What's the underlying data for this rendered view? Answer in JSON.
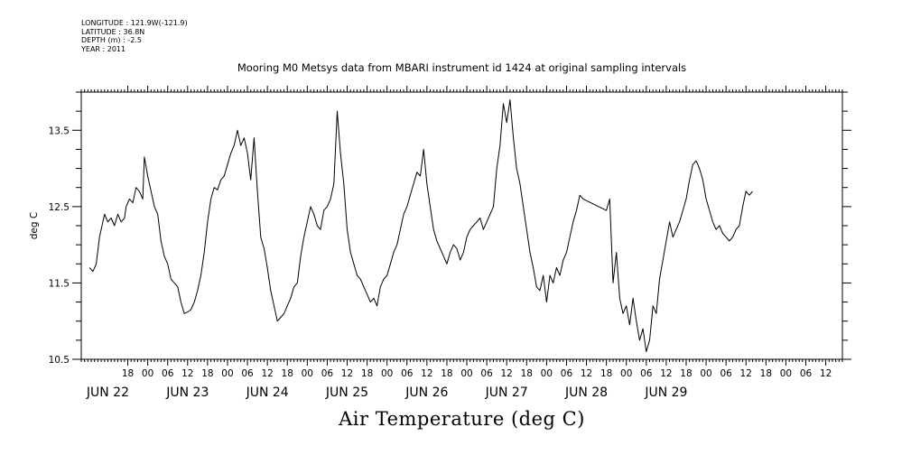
{
  "meta": {
    "longitude": "LONGITUDE : 121.9W(-121.9)",
    "latitude": "LATITUDE : 36.8N",
    "depth": "DEPTH (m) : -2.5",
    "year": "YEAR : 2011"
  },
  "chart_data": {
    "type": "line",
    "title": "Mooring M0 Metsys data from MBARI instrument id 1424 at original sampling intervals",
    "xlabel": "Air Temperature (deg C)",
    "ylabel": "deg C",
    "grid": false,
    "x_unit": "hours since JUN 22 00",
    "xlim": [
      -20,
      209
    ],
    "ylim": [
      10.5,
      14.0
    ],
    "y_ticks": [
      10.5,
      11.5,
      12.5,
      13.5
    ],
    "y_tick_labels": [
      "10.5",
      "11.5",
      "12.5",
      "13.5"
    ],
    "hour_ticks": [
      {
        "x": -6,
        "label": "18"
      },
      {
        "x": 0,
        "label": "00"
      },
      {
        "x": 6,
        "label": "06"
      },
      {
        "x": 12,
        "label": "12"
      },
      {
        "x": 18,
        "label": "18"
      },
      {
        "x": 24,
        "label": "00"
      },
      {
        "x": 30,
        "label": "06"
      },
      {
        "x": 36,
        "label": "12"
      },
      {
        "x": 42,
        "label": "18"
      },
      {
        "x": 48,
        "label": "00"
      },
      {
        "x": 54,
        "label": "06"
      },
      {
        "x": 60,
        "label": "12"
      },
      {
        "x": 66,
        "label": "18"
      },
      {
        "x": 72,
        "label": "00"
      },
      {
        "x": 78,
        "label": "06"
      },
      {
        "x": 84,
        "label": "12"
      },
      {
        "x": 90,
        "label": "18"
      },
      {
        "x": 96,
        "label": "00"
      },
      {
        "x": 102,
        "label": "06"
      },
      {
        "x": 108,
        "label": "12"
      },
      {
        "x": 114,
        "label": "18"
      },
      {
        "x": 120,
        "label": "00"
      },
      {
        "x": 126,
        "label": "06"
      },
      {
        "x": 132,
        "label": "12"
      },
      {
        "x": 138,
        "label": "18"
      },
      {
        "x": 144,
        "label": "00"
      },
      {
        "x": 150,
        "label": "06"
      },
      {
        "x": 156,
        "label": "12"
      },
      {
        "x": 162,
        "label": "18"
      },
      {
        "x": 168,
        "label": "00"
      },
      {
        "x": 174,
        "label": "06"
      },
      {
        "x": 180,
        "label": "12"
      },
      {
        "x": 186,
        "label": "18"
      },
      {
        "x": 192,
        "label": "00"
      },
      {
        "x": 198,
        "label": "06"
      },
      {
        "x": 204,
        "label": "12"
      }
    ],
    "date_labels": [
      {
        "x": -12,
        "label": "JUN 22"
      },
      {
        "x": 12,
        "label": "JUN 23"
      },
      {
        "x": 36,
        "label": "JUN 24"
      },
      {
        "x": 60,
        "label": "JUN 25"
      },
      {
        "x": 84,
        "label": "JUN 26"
      },
      {
        "x": 108,
        "label": "JUN 27"
      },
      {
        "x": 132,
        "label": "JUN 28"
      },
      {
        "x": 156,
        "label": "JUN 29"
      }
    ],
    "series": [
      {
        "values": [
          [
            -17.5,
            11.7
          ],
          [
            -16.5,
            11.65
          ],
          [
            -15.5,
            11.75
          ],
          [
            -14.5,
            12.1
          ],
          [
            -13,
            12.4
          ],
          [
            -12,
            12.3
          ],
          [
            -11,
            12.35
          ],
          [
            -10,
            12.25
          ],
          [
            -9,
            12.4
          ],
          [
            -8,
            12.3
          ],
          [
            -7,
            12.35
          ],
          [
            -6.5,
            12.5
          ],
          [
            -5.5,
            12.6
          ],
          [
            -4.5,
            12.55
          ],
          [
            -3.5,
            12.75
          ],
          [
            -2.5,
            12.7
          ],
          [
            -1.5,
            12.6
          ],
          [
            -1,
            13.15
          ],
          [
            0,
            12.9
          ],
          [
            1,
            12.7
          ],
          [
            2,
            12.5
          ],
          [
            3,
            12.4
          ],
          [
            4,
            12.05
          ],
          [
            5,
            11.85
          ],
          [
            6,
            11.75
          ],
          [
            7,
            11.55
          ],
          [
            8,
            11.5
          ],
          [
            9,
            11.45
          ],
          [
            10,
            11.25
          ],
          [
            11,
            11.1
          ],
          [
            12,
            11.12
          ],
          [
            13,
            11.15
          ],
          [
            14,
            11.25
          ],
          [
            15,
            11.4
          ],
          [
            16,
            11.6
          ],
          [
            17,
            11.9
          ],
          [
            18,
            12.3
          ],
          [
            19,
            12.6
          ],
          [
            20,
            12.75
          ],
          [
            21,
            12.72
          ],
          [
            22,
            12.85
          ],
          [
            23,
            12.9
          ],
          [
            24,
            13.05
          ],
          [
            25,
            13.2
          ],
          [
            26,
            13.3
          ],
          [
            27,
            13.5
          ],
          [
            28,
            13.3
          ],
          [
            29,
            13.4
          ],
          [
            30,
            13.2
          ],
          [
            31,
            12.85
          ],
          [
            32,
            13.4
          ],
          [
            33,
            12.7
          ],
          [
            34,
            12.1
          ],
          [
            35,
            11.95
          ],
          [
            36,
            11.7
          ],
          [
            37,
            11.4
          ],
          [
            38,
            11.2
          ],
          [
            39,
            11.0
          ],
          [
            40,
            11.05
          ],
          [
            41,
            11.1
          ],
          [
            42,
            11.2
          ],
          [
            43,
            11.3
          ],
          [
            44,
            11.45
          ],
          [
            45,
            11.5
          ],
          [
            46,
            11.85
          ],
          [
            47,
            12.1
          ],
          [
            48,
            12.3
          ],
          [
            49,
            12.5
          ],
          [
            50,
            12.4
          ],
          [
            51,
            12.25
          ],
          [
            52,
            12.2
          ],
          [
            53,
            12.45
          ],
          [
            54,
            12.5
          ],
          [
            55,
            12.6
          ],
          [
            56,
            12.8
          ],
          [
            57,
            13.75
          ],
          [
            58,
            13.2
          ],
          [
            59,
            12.8
          ],
          [
            60,
            12.2
          ],
          [
            61,
            11.9
          ],
          [
            62,
            11.75
          ],
          [
            63,
            11.6
          ],
          [
            64,
            11.55
          ],
          [
            65,
            11.45
          ],
          [
            66,
            11.35
          ],
          [
            67,
            11.25
          ],
          [
            68,
            11.3
          ],
          [
            69,
            11.2
          ],
          [
            70,
            11.45
          ],
          [
            71,
            11.55
          ],
          [
            72,
            11.6
          ],
          [
            73,
            11.75
          ],
          [
            74,
            11.9
          ],
          [
            75,
            12.0
          ],
          [
            76,
            12.2
          ],
          [
            77,
            12.4
          ],
          [
            78,
            12.5
          ],
          [
            79,
            12.65
          ],
          [
            80,
            12.8
          ],
          [
            81,
            12.95
          ],
          [
            82,
            12.9
          ],
          [
            83,
            13.25
          ],
          [
            84,
            12.8
          ],
          [
            85,
            12.5
          ],
          [
            86,
            12.2
          ],
          [
            87,
            12.05
          ],
          [
            88,
            11.95
          ],
          [
            89,
            11.85
          ],
          [
            90,
            11.75
          ],
          [
            91,
            11.9
          ],
          [
            92,
            12.0
          ],
          [
            93,
            11.95
          ],
          [
            94,
            11.8
          ],
          [
            95,
            11.9
          ],
          [
            96,
            12.1
          ],
          [
            97,
            12.2
          ],
          [
            98,
            12.25
          ],
          [
            99,
            12.3
          ],
          [
            100,
            12.35
          ],
          [
            101,
            12.2
          ],
          [
            102,
            12.3
          ],
          [
            103,
            12.4
          ],
          [
            104,
            12.5
          ],
          [
            105,
            13.0
          ],
          [
            106,
            13.3
          ],
          [
            107,
            13.85
          ],
          [
            108,
            13.6
          ],
          [
            109,
            13.9
          ],
          [
            110,
            13.4
          ],
          [
            111,
            13.0
          ],
          [
            112,
            12.8
          ],
          [
            113,
            12.5
          ],
          [
            114,
            12.2
          ],
          [
            115,
            11.9
          ],
          [
            116,
            11.7
          ],
          [
            117,
            11.45
          ],
          [
            118,
            11.4
          ],
          [
            119,
            11.6
          ],
          [
            120,
            11.25
          ],
          [
            121,
            11.6
          ],
          [
            122,
            11.5
          ],
          [
            123,
            11.7
          ],
          [
            124,
            11.6
          ],
          [
            125,
            11.8
          ],
          [
            126,
            11.9
          ],
          [
            127,
            12.1
          ],
          [
            128,
            12.3
          ],
          [
            129,
            12.45
          ],
          [
            130,
            12.65
          ],
          [
            131,
            12.6
          ],
          [
            138,
            12.45
          ],
          [
            139,
            12.6
          ],
          [
            140,
            11.5
          ],
          [
            141,
            11.9
          ],
          [
            142,
            11.3
          ],
          [
            143,
            11.1
          ],
          [
            144,
            11.2
          ],
          [
            145,
            10.95
          ],
          [
            146,
            11.3
          ],
          [
            147,
            11.0
          ],
          [
            148,
            10.75
          ],
          [
            149,
            10.9
          ],
          [
            150,
            10.6
          ],
          [
            151,
            10.75
          ],
          [
            152,
            11.2
          ],
          [
            153,
            11.1
          ],
          [
            154,
            11.55
          ],
          [
            155,
            11.8
          ],
          [
            156,
            12.05
          ],
          [
            157,
            12.3
          ],
          [
            158,
            12.1
          ],
          [
            159,
            12.2
          ],
          [
            160,
            12.3
          ],
          [
            161,
            12.45
          ],
          [
            162,
            12.6
          ],
          [
            163,
            12.85
          ],
          [
            164,
            13.05
          ],
          [
            165,
            13.1
          ],
          [
            166,
            13.0
          ],
          [
            167,
            12.85
          ],
          [
            168,
            12.6
          ],
          [
            169,
            12.45
          ],
          [
            170,
            12.3
          ],
          [
            171,
            12.2
          ],
          [
            172,
            12.25
          ],
          [
            173,
            12.15
          ],
          [
            174,
            12.1
          ],
          [
            175,
            12.05
          ],
          [
            176,
            12.1
          ],
          [
            177,
            12.2
          ],
          [
            178,
            12.25
          ],
          [
            179,
            12.5
          ],
          [
            180,
            12.7
          ],
          [
            181,
            12.65
          ],
          [
            182,
            12.7
          ]
        ]
      }
    ]
  }
}
